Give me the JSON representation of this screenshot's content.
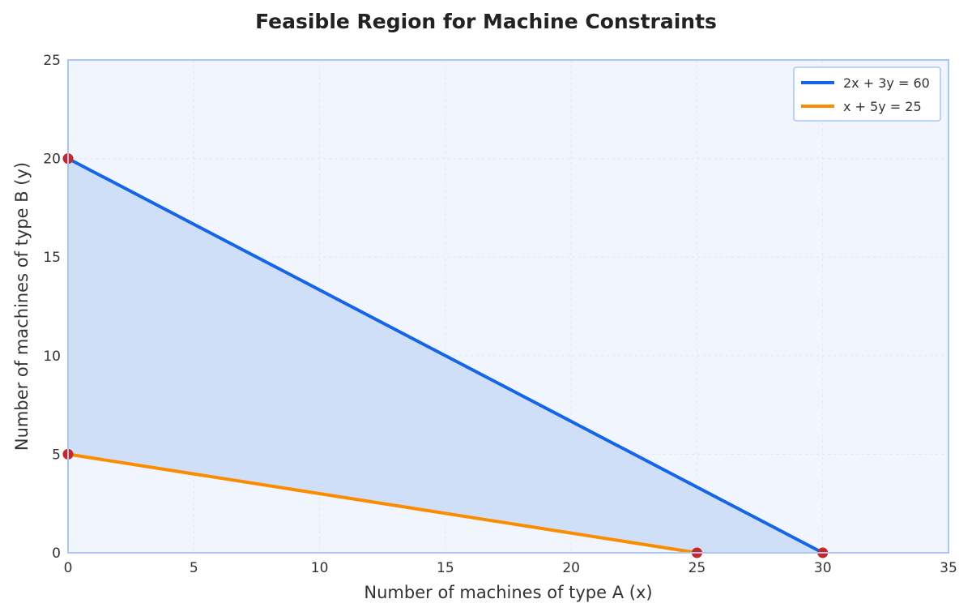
{
  "chart_data": {
    "type": "line",
    "title": "Feasible Region for Machine Constraints",
    "xlabel": "Number of machines of type A (x)",
    "ylabel": "Number of machines of type B (y)",
    "xlim": [
      0,
      35
    ],
    "ylim": [
      0,
      25
    ],
    "x_ticks": [
      0,
      5,
      10,
      15,
      20,
      25,
      30,
      35
    ],
    "y_ticks": [
      0,
      5,
      10,
      15,
      20,
      25
    ],
    "grid": true,
    "legend_position": "top-right",
    "series": [
      {
        "name": "2x + 3y = 60",
        "color": "#1565e6",
        "points": [
          {
            "x": 0,
            "y": 20
          },
          {
            "x": 30,
            "y": 0
          }
        ]
      },
      {
        "name": "x + 5y = 25",
        "color": "#fb8c00",
        "points": [
          {
            "x": 0,
            "y": 5
          },
          {
            "x": 25,
            "y": 0
          }
        ]
      }
    ],
    "feasible_region": {
      "fill_color": "#d0dff8",
      "vertices": [
        {
          "x": 0,
          "y": 5
        },
        {
          "x": 0,
          "y": 20
        },
        {
          "x": 30,
          "y": 0
        },
        {
          "x": 25,
          "y": 0
        }
      ]
    },
    "corner_points": {
      "color": "#c62828",
      "points": [
        {
          "x": 0,
          "y": 20
        },
        {
          "x": 0,
          "y": 5
        },
        {
          "x": 25,
          "y": 0
        },
        {
          "x": 30,
          "y": 0
        }
      ]
    },
    "colors": {
      "plot_background": "#f1f6fe",
      "plot_border": "#a9c6f5",
      "grid": "#dde7f5"
    }
  }
}
